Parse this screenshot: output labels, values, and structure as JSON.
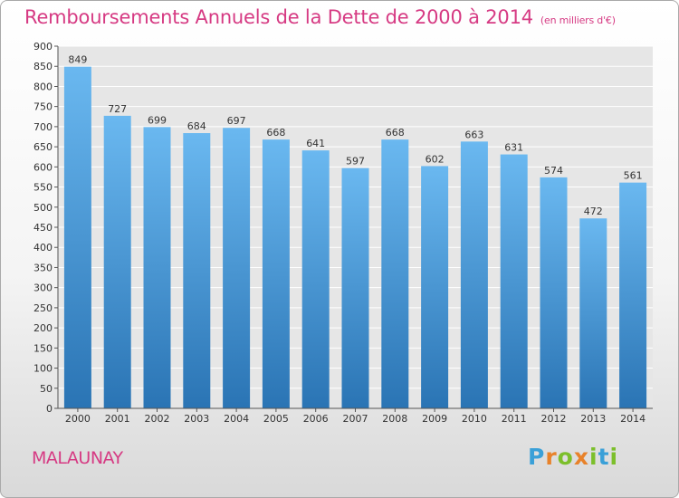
{
  "title": "Remboursements Annuels de la Dette de 2000 à 2014",
  "unit": "(en milliers d'€)",
  "city": "MALAUNAY",
  "brand": {
    "letters": [
      "P",
      "r",
      "o",
      "x",
      "i",
      "t",
      "i"
    ],
    "colors": [
      "#3aa0d8",
      "#e8822a",
      "#7cbf2b",
      "#e8822a",
      "#7cbf2b",
      "#3aa0d8",
      "#7cbf2b"
    ]
  },
  "colors": {
    "title": "#d63a83",
    "bar_top": "#6ab8f0",
    "bar_bottom": "#2a74b4",
    "plot_bg": "#e6e6e6"
  },
  "chart_data": {
    "type": "bar",
    "categories": [
      "2000",
      "2001",
      "2002",
      "2003",
      "2004",
      "2005",
      "2006",
      "2007",
      "2008",
      "2009",
      "2010",
      "2011",
      "2012",
      "2013",
      "2014"
    ],
    "values": [
      849,
      727,
      699,
      684,
      697,
      668,
      641,
      597,
      668,
      602,
      663,
      631,
      574,
      472,
      561
    ],
    "ylim": [
      0,
      900
    ],
    "yticks": [
      0,
      50,
      100,
      150,
      200,
      250,
      300,
      350,
      400,
      450,
      500,
      550,
      600,
      650,
      700,
      750,
      800,
      850,
      900
    ],
    "grid": true
  }
}
